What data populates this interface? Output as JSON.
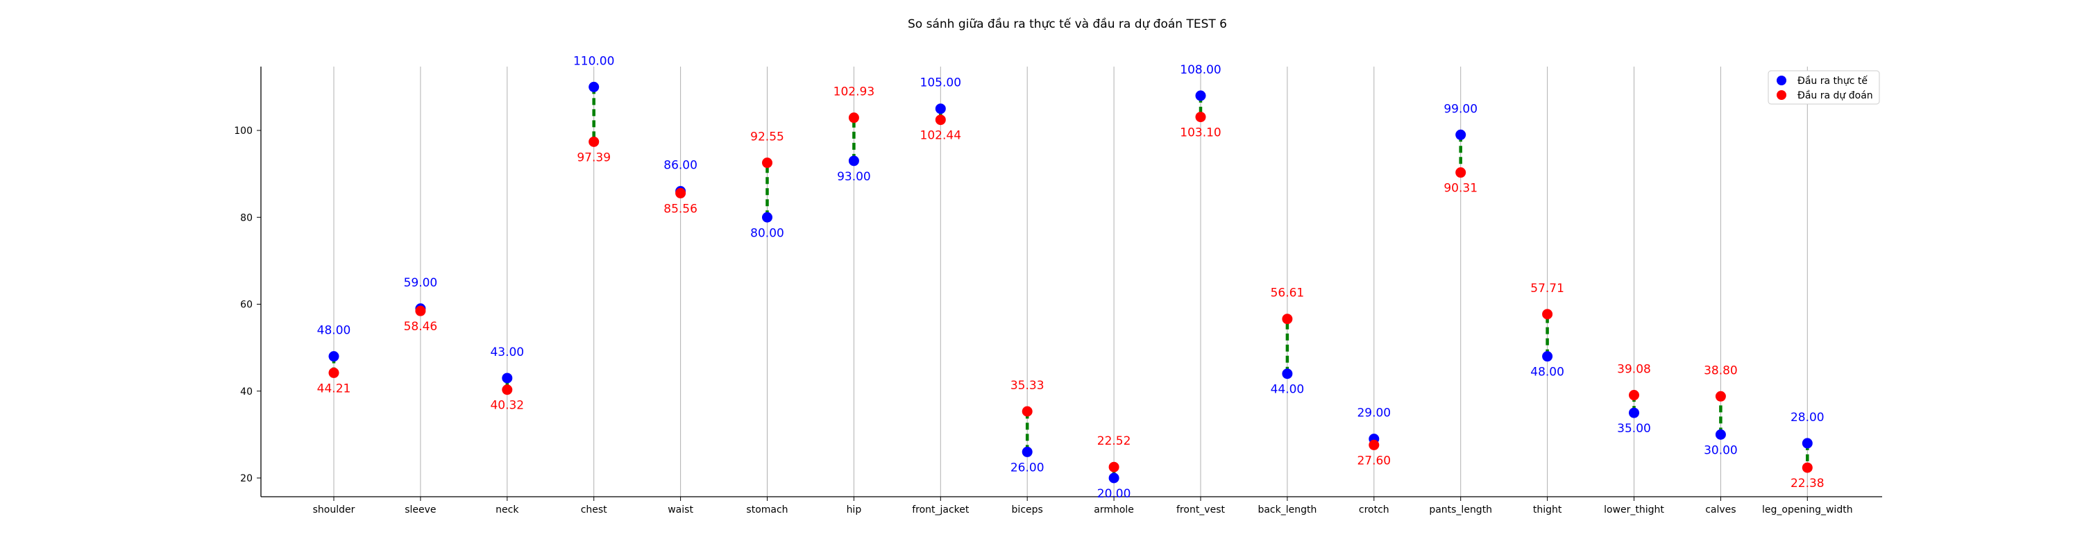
{
  "chart_data": {
    "type": "scatter",
    "title": "So sánh giữa đầu ra thực tế và đầu ra dự đoán TEST 6",
    "xlabel": "",
    "ylabel": "",
    "categories": [
      "shoulder",
      "sleeve",
      "neck",
      "chest",
      "waist",
      "stomach",
      "hip",
      "front_jacket",
      "biceps",
      "armhole",
      "front_vest",
      "back_length",
      "crotch",
      "pants_length",
      "thight",
      "lower_thight",
      "calves",
      "leg_opening_width"
    ],
    "series": [
      {
        "name": "Đầu ra thực tế",
        "color": "#0000ff",
        "values": [
          48.0,
          59.0,
          43.0,
          110.0,
          86.0,
          80.0,
          93.0,
          105.0,
          26.0,
          20.0,
          108.0,
          44.0,
          29.0,
          99.0,
          48.0,
          35.0,
          30.0,
          28.0
        ],
        "labels": [
          "48.00",
          "59.00",
          "43.00",
          "110.00",
          "86.00",
          "80.00",
          "93.00",
          "105.00",
          "26.00",
          "20.00",
          "108.00",
          "44.00",
          "29.00",
          "99.00",
          "48.00",
          "35.00",
          "30.00",
          "28.00"
        ]
      },
      {
        "name": "Đầu ra dự đoán",
        "color": "#ff0000",
        "values": [
          44.21,
          58.46,
          40.32,
          97.39,
          85.56,
          92.55,
          102.93,
          102.44,
          35.33,
          22.52,
          103.1,
          56.61,
          27.6,
          90.31,
          57.71,
          39.08,
          38.8,
          22.38
        ],
        "labels": [
          "44.21",
          "58.46",
          "40.32",
          "97.39",
          "85.56",
          "92.55",
          "102.93",
          "102.44",
          "35.33",
          "22.52",
          "103.10",
          "56.61",
          "27.60",
          "90.31",
          "57.71",
          "39.08",
          "38.80",
          "22.38"
        ]
      }
    ],
    "connector_color": "#008000",
    "yticks": [
      20,
      40,
      60,
      80,
      100
    ],
    "ylim": [
      15.5,
      114.5
    ],
    "grid": "vertical",
    "legend_position": "top-right"
  }
}
